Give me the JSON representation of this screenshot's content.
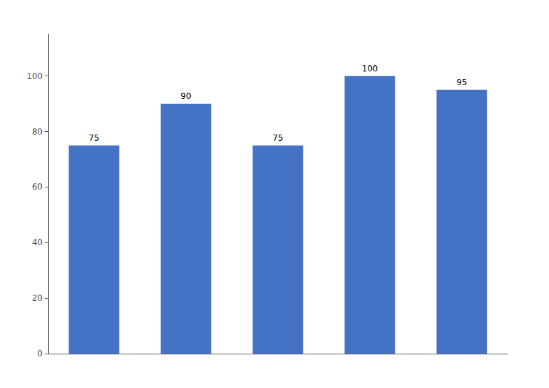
{
  "chart_data": {
    "type": "bar",
    "categories": [
      null,
      null,
      null,
      null,
      null
    ],
    "values": [
      75,
      90,
      75,
      100,
      95
    ],
    "color": "#4472C4",
    "ylim": [
      0,
      115
    ],
    "yticks": [
      0,
      20,
      40,
      60,
      80,
      100
    ],
    "grid": false,
    "data_labels": true,
    "tick_labels": "y"
  }
}
